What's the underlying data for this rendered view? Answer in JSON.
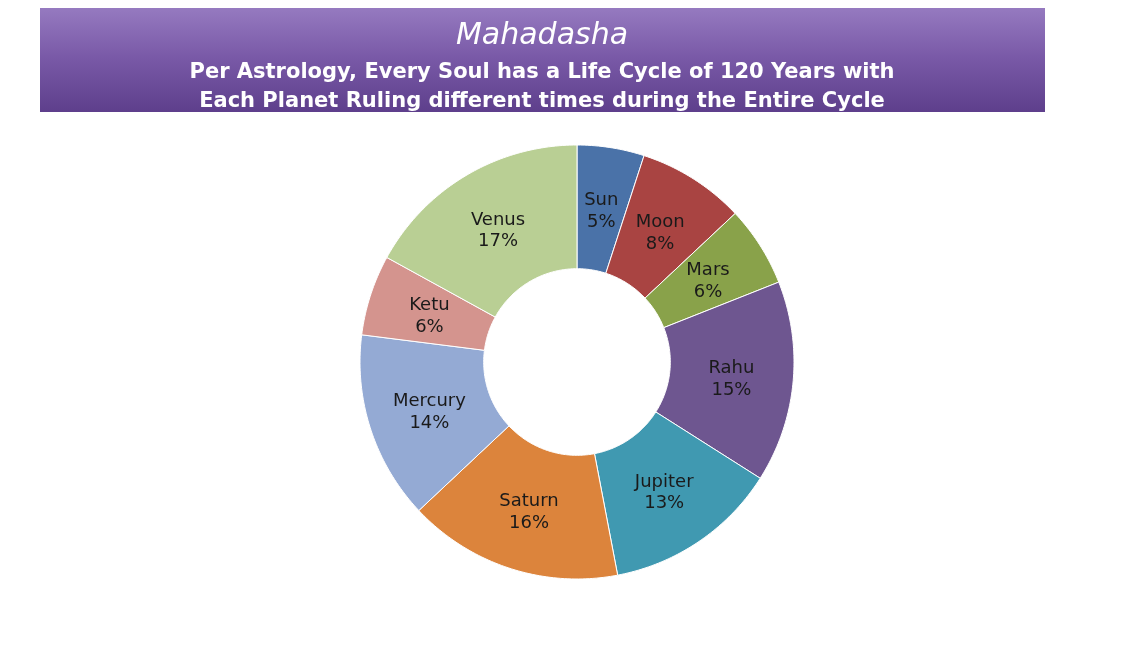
{
  "chart_data": {
    "type": "donut",
    "title": "Mahadasha",
    "subtitle": "Per Astrology, Every Soul has a Life Cycle of 120 Years with Each Planet Ruling different times during the Entire Cycle",
    "categories": [
      "Sun",
      "Moon",
      "Mars",
      "Rahu",
      "Jupiter",
      "Saturn",
      "Mercury",
      "Ketu",
      "Venus"
    ],
    "values": [
      5,
      8,
      6,
      15,
      13,
      16,
      14,
      6,
      17
    ],
    "colors": [
      "#4a72a8",
      "#a94442",
      "#89a24a",
      "#6e5690",
      "#4099b1",
      "#dc843c",
      "#94aad4",
      "#d4948e",
      "#b9cf94"
    ],
    "value_labels": [
      "5%",
      "8%",
      "6%",
      "15%",
      "13%",
      "16%",
      "14%",
      "6%",
      "17%"
    ]
  }
}
